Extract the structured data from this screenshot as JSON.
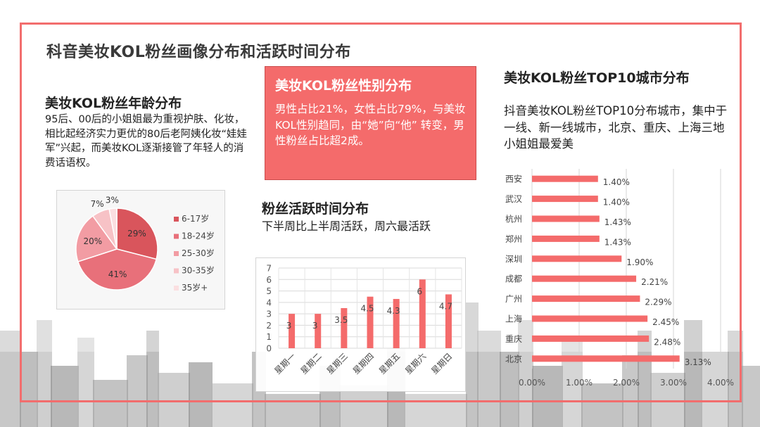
{
  "page_title": "科音美妆KOL粉丝画像分布和活跃时间分布",
  "age_section": {
    "title": "美妆KOL粉丝年龄分布",
    "description": "95后、00后的小姐姐最为重视护肤、化妆，相比起经济实力更优的80后老阿姨化妆“娃娃军”兴起，而美妆KOL逐渐接管了年轻人的消费话语权。"
  },
  "gender_section": {
    "title": "美妆KOL粉丝性别分布",
    "description": "男性占比21%，女性占比79%，与美妆KOL性别趋同，由“她”向“他” 转变，男性粉丝占比超2成。"
  },
  "active_section": {
    "title": "粉丝活跃时间分布",
    "description": "下半周比上半周活跃，周六最活跃"
  },
  "city_section": {
    "title": "美妆KOL粉丝TOP10城市分布",
    "description": "抖音美妆KOL粉丝TOP10分布城市，集中于一线、新一线城市，北京、重庆、上海三地小姐姐最爱美"
  },
  "colors": {
    "accent": "#f46b6b",
    "frame": "#f26d6d",
    "bar": "#f46b6b"
  },
  "chart_data": [
    {
      "id": "age",
      "type": "pie",
      "title": "",
      "categories": [
        "6-17岁",
        "18-24岁",
        "25-30岁",
        "30-35岁",
        "35岁+"
      ],
      "values": [
        29,
        41,
        20,
        7,
        3
      ],
      "labels": [
        "29%",
        "41%",
        "20%",
        "7%",
        "3%"
      ],
      "colors": [
        "#d9555c",
        "#e8707a",
        "#f29ca3",
        "#f7c2c6",
        "#fbdfe1"
      ],
      "legend_position": "right"
    },
    {
      "id": "active",
      "type": "bar",
      "title": "",
      "categories": [
        "星期一",
        "星期二",
        "星期三",
        "星期四",
        "星期五",
        "星期六",
        "星期日"
      ],
      "values": [
        3,
        3,
        3.5,
        4.5,
        4.3,
        6,
        4.7
      ],
      "labels": [
        "3",
        "3",
        "3.5",
        "4.5",
        "4.3",
        "6",
        "4.7"
      ],
      "yticks": [
        "0",
        "1",
        "2",
        "3",
        "4",
        "5",
        "6",
        "7"
      ],
      "ylim": [
        0,
        7
      ],
      "grid": true
    },
    {
      "id": "city",
      "type": "bar",
      "orientation": "horizontal",
      "title": "",
      "categories": [
        "西安",
        "武汉",
        "杭州",
        "郑州",
        "深圳",
        "成都",
        "广州",
        "上海",
        "重庆",
        "北京"
      ],
      "values": [
        1.4,
        1.4,
        1.43,
        1.43,
        1.9,
        2.21,
        2.29,
        2.45,
        2.48,
        3.13
      ],
      "labels": [
        "1.40%",
        "1.40%",
        "1.43%",
        "1.43%",
        "1.90%",
        "2.21%",
        "2.29%",
        "2.45%",
        "2.48%",
        "3.13%"
      ],
      "xticks": [
        "0.00%",
        "1.00%",
        "2.00%",
        "3.00%",
        "4.00%"
      ],
      "xlim": [
        0,
        4
      ],
      "grid": true
    }
  ]
}
